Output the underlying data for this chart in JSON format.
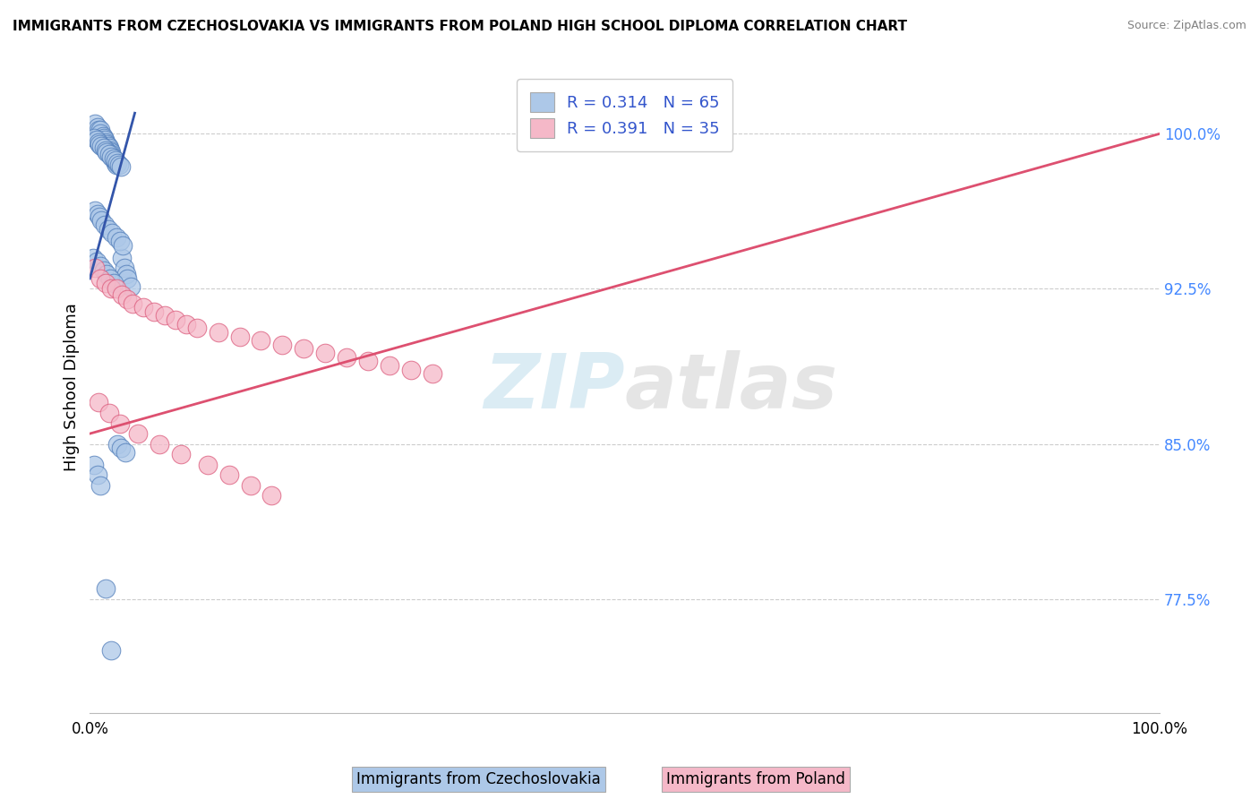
{
  "title": "IMMIGRANTS FROM CZECHOSLOVAKIA VS IMMIGRANTS FROM POLAND HIGH SCHOOL DIPLOMA CORRELATION CHART",
  "source": "Source: ZipAtlas.com",
  "ylabel": "High School Diploma",
  "xmin": 0.0,
  "xmax": 1.0,
  "ymin": 0.72,
  "ymax": 1.035,
  "yticks": [
    0.775,
    0.85,
    0.925,
    1.0
  ],
  "ytick_labels": [
    "77.5%",
    "85.0%",
    "92.5%",
    "100.0%"
  ],
  "xtick_labels": [
    "0.0%",
    "100.0%"
  ],
  "legend_r_blue": "R = 0.314",
  "legend_n_blue": "N = 65",
  "legend_r_pink": "R = 0.391",
  "legend_n_pink": "N = 35",
  "blue_color": "#adc8e8",
  "pink_color": "#f5b8c8",
  "blue_edge_color": "#5580bb",
  "pink_edge_color": "#dd6080",
  "blue_line_color": "#3355aa",
  "pink_line_color": "#dd5070",
  "watermark_color": "#cce5f0",
  "bottom_label_blue": "Immigrants from Czechoslovakia",
  "bottom_label_pink": "Immigrants from Poland",
  "blue_scatter_x": [
    0.005,
    0.007,
    0.008,
    0.01,
    0.01,
    0.012,
    0.013,
    0.014,
    0.015,
    0.016,
    0.017,
    0.018,
    0.019,
    0.02,
    0.02,
    0.021,
    0.022,
    0.023,
    0.024,
    0.025,
    0.004,
    0.006,
    0.008,
    0.009,
    0.011,
    0.013,
    0.015,
    0.016,
    0.018,
    0.02,
    0.022,
    0.024,
    0.026,
    0.027,
    0.029,
    0.03,
    0.032,
    0.034,
    0.035,
    0.038,
    0.005,
    0.007,
    0.009,
    0.011,
    0.014,
    0.017,
    0.021,
    0.025,
    0.028,
    0.031,
    0.003,
    0.006,
    0.01,
    0.013,
    0.016,
    0.019,
    0.022,
    0.026,
    0.029,
    0.033,
    0.004,
    0.007,
    0.01,
    0.015,
    0.02
  ],
  "blue_scatter_y": [
    1.005,
    1.003,
    1.002,
    1.002,
    1.0,
    0.999,
    0.998,
    0.997,
    0.996,
    0.995,
    0.994,
    0.993,
    0.992,
    0.991,
    0.99,
    0.989,
    0.988,
    0.987,
    0.986,
    0.985,
    0.998,
    0.997,
    0.996,
    0.995,
    0.994,
    0.993,
    0.992,
    0.991,
    0.99,
    0.989,
    0.988,
    0.987,
    0.986,
    0.985,
    0.984,
    0.94,
    0.935,
    0.932,
    0.93,
    0.926,
    0.963,
    0.961,
    0.96,
    0.958,
    0.956,
    0.954,
    0.952,
    0.95,
    0.948,
    0.946,
    0.94,
    0.938,
    0.936,
    0.934,
    0.932,
    0.93,
    0.928,
    0.85,
    0.848,
    0.846,
    0.84,
    0.835,
    0.83,
    0.78,
    0.75
  ],
  "pink_scatter_x": [
    0.005,
    0.01,
    0.015,
    0.02,
    0.025,
    0.03,
    0.035,
    0.04,
    0.05,
    0.06,
    0.07,
    0.08,
    0.09,
    0.1,
    0.12,
    0.14,
    0.16,
    0.18,
    0.2,
    0.22,
    0.24,
    0.26,
    0.28,
    0.3,
    0.32,
    0.008,
    0.018,
    0.028,
    0.045,
    0.065,
    0.085,
    0.11,
    0.13,
    0.15,
    0.17
  ],
  "pink_scatter_y": [
    0.935,
    0.93,
    0.928,
    0.925,
    0.925,
    0.922,
    0.92,
    0.918,
    0.916,
    0.914,
    0.912,
    0.91,
    0.908,
    0.906,
    0.904,
    0.902,
    0.9,
    0.898,
    0.896,
    0.894,
    0.892,
    0.89,
    0.888,
    0.886,
    0.884,
    0.87,
    0.865,
    0.86,
    0.855,
    0.85,
    0.845,
    0.84,
    0.835,
    0.83,
    0.825
  ],
  "blue_line_x0": 0.0,
  "blue_line_x1": 0.042,
  "blue_line_y0": 0.93,
  "blue_line_y1": 1.01,
  "pink_line_x0": 0.0,
  "pink_line_x1": 1.0,
  "pink_line_y0": 0.855,
  "pink_line_y1": 1.0
}
